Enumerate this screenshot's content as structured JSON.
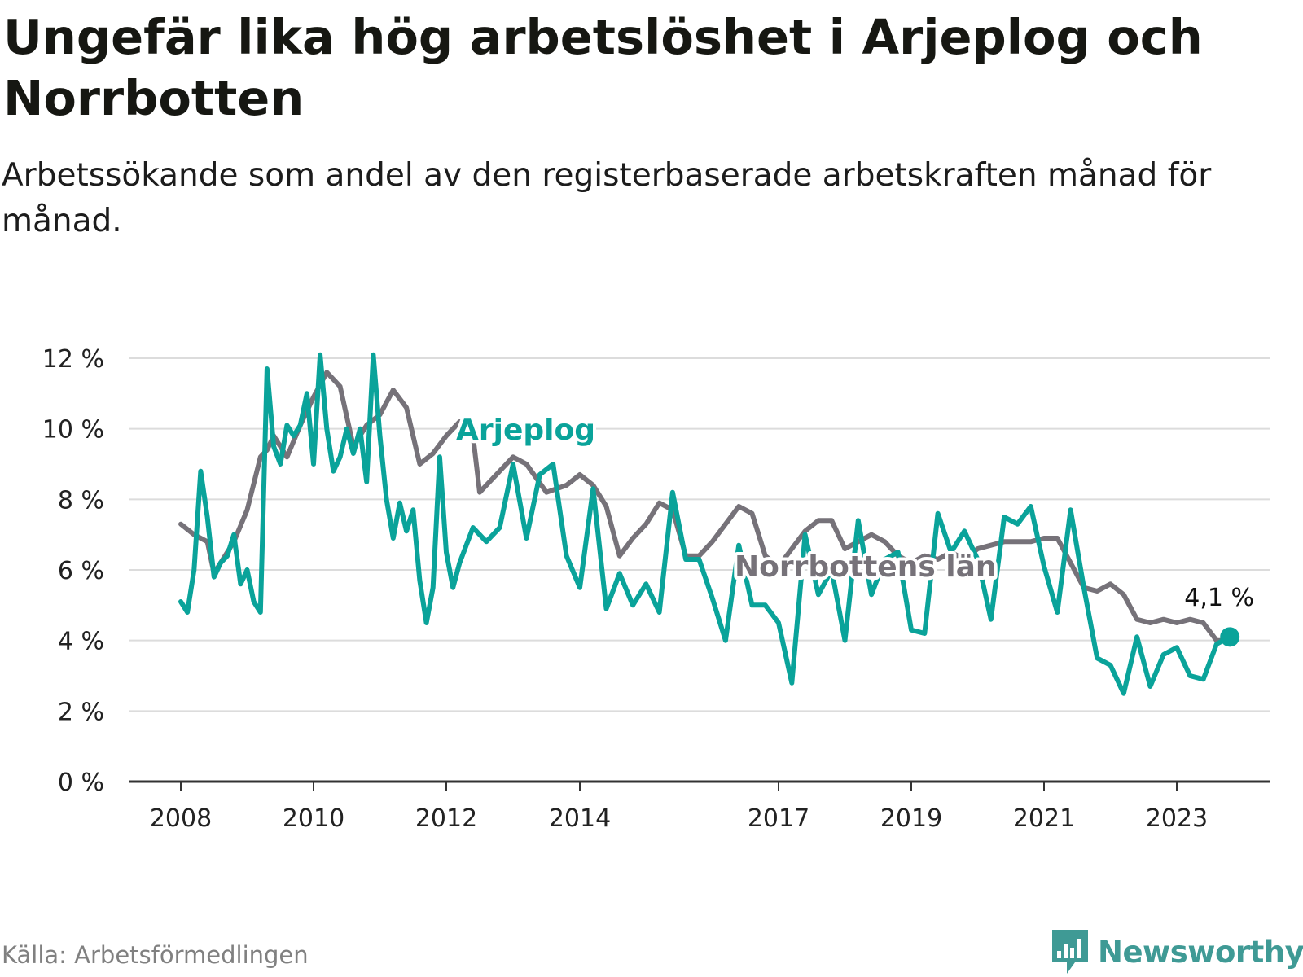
{
  "title": "Ungefär lika hög arbetslöshet i Arjeplog och Norrbotten",
  "subtitle": "Arbetssökande som andel av den registerbaserade arbetskraften månad för månad.",
  "source": "Källa: Arbetsförmedlingen",
  "brand": "Newsworthy",
  "colors": {
    "arjeplog": "#0aa39a",
    "norrbotten": "#767279",
    "grid": "#dcdcdc",
    "axis": "#333333",
    "brand": "#3f9a95"
  },
  "chart_data": {
    "type": "line",
    "title": "Ungefär lika hög arbetslöshet i Arjeplog och Norrbotten",
    "xlabel": "",
    "ylabel": "",
    "ylim": [
      0,
      12
    ],
    "yticks": [
      0,
      2,
      4,
      6,
      8,
      10,
      12
    ],
    "ytick_labels": [
      "0 %",
      "2 %",
      "4 %",
      "6 %",
      "8 %",
      "10 %",
      "12 %"
    ],
    "xlim": [
      2008,
      2024.5
    ],
    "xticks": [
      2008,
      2010,
      2012,
      2014,
      2017,
      2019,
      2021,
      2023
    ],
    "xtick_labels": [
      "2008",
      "2010",
      "2012",
      "2014",
      "2017",
      "2019",
      "2021",
      "2023"
    ],
    "grid": true,
    "end_label": "4,1 %",
    "series": [
      {
        "name": "Norrbottens län",
        "label": "Norrbottens län",
        "color": "#767279",
        "x": [
          2008.0,
          2008.2,
          2008.4,
          2008.5,
          2008.6,
          2008.8,
          2009.0,
          2009.2,
          2009.3,
          2009.4,
          2009.6,
          2009.8,
          2010.0,
          2010.2,
          2010.4,
          2010.6,
          2010.8,
          2011.0,
          2011.2,
          2011.4,
          2011.6,
          2011.8,
          2012.0,
          2012.2,
          2012.4,
          2012.5,
          2012.7,
          2013.0,
          2013.2,
          2013.5,
          2013.8,
          2014.0,
          2014.2,
          2014.4,
          2014.6,
          2014.8,
          2015.0,
          2015.2,
          2015.4,
          2015.6,
          2015.8,
          2016.0,
          2016.2,
          2016.4,
          2016.6,
          2016.8,
          2017.0,
          2017.2,
          2017.4,
          2017.6,
          2017.8,
          2018.0,
          2018.2,
          2018.4,
          2018.6,
          2018.8,
          2019.0,
          2019.2,
          2019.4,
          2019.6,
          2019.8,
          2020.0,
          2020.2,
          2020.4,
          2020.6,
          2020.8,
          2021.0,
          2021.2,
          2021.4,
          2021.6,
          2021.8,
          2022.0,
          2022.2,
          2022.4,
          2022.6,
          2022.8,
          2023.0,
          2023.2,
          2023.4,
          2023.6,
          2023.8
        ],
        "values": [
          7.3,
          7.0,
          6.8,
          5.9,
          6.2,
          6.8,
          7.7,
          9.2,
          9.4,
          9.8,
          9.2,
          10.1,
          10.9,
          11.6,
          11.2,
          9.5,
          10.1,
          10.4,
          11.1,
          10.6,
          9.0,
          9.3,
          9.8,
          10.2,
          9.8,
          8.2,
          8.6,
          9.2,
          9.0,
          8.2,
          8.4,
          8.7,
          8.4,
          7.8,
          6.4,
          6.9,
          7.3,
          7.9,
          7.7,
          6.4,
          6.4,
          6.8,
          7.3,
          7.8,
          7.6,
          6.4,
          6.1,
          6.6,
          7.1,
          7.4,
          7.4,
          6.6,
          6.8,
          7.0,
          6.8,
          6.4,
          6.2,
          6.4,
          6.3,
          6.5,
          6.3,
          6.6,
          6.7,
          6.8,
          6.8,
          6.8,
          6.9,
          6.9,
          6.2,
          5.5,
          5.4,
          5.6,
          5.3,
          4.6,
          4.5,
          4.6,
          4.5,
          4.6,
          4.5,
          4.0,
          4.0
        ]
      },
      {
        "name": "Arjeplog",
        "label": "Arjeplog",
        "color": "#0aa39a",
        "x": [
          2008.0,
          2008.1,
          2008.2,
          2008.3,
          2008.4,
          2008.5,
          2008.6,
          2008.7,
          2008.8,
          2008.9,
          2009.0,
          2009.1,
          2009.2,
          2009.3,
          2009.4,
          2009.5,
          2009.6,
          2009.7,
          2009.8,
          2009.9,
          2010.0,
          2010.1,
          2010.2,
          2010.3,
          2010.4,
          2010.5,
          2010.6,
          2010.7,
          2010.8,
          2010.9,
          2011.0,
          2011.1,
          2011.2,
          2011.3,
          2011.4,
          2011.5,
          2011.6,
          2011.7,
          2011.8,
          2011.9,
          2012.0,
          2012.1,
          2012.2,
          2012.3,
          2012.4,
          2012.5,
          2012.6,
          2012.8,
          2013.0,
          2013.2,
          2013.4,
          2013.6,
          2013.8,
          2014.0,
          2014.2,
          2014.4,
          2014.6,
          2014.8,
          2015.0,
          2015.2,
          2015.4,
          2015.6,
          2015.8,
          2016.0,
          2016.2,
          2016.4,
          2016.6,
          2016.8,
          2017.0,
          2017.2,
          2017.4,
          2017.6,
          2017.8,
          2018.0,
          2018.2,
          2018.4,
          2018.6,
          2018.8,
          2019.0,
          2019.2,
          2019.4,
          2019.6,
          2019.8,
          2020.0,
          2020.2,
          2020.4,
          2020.6,
          2020.8,
          2021.0,
          2021.2,
          2021.4,
          2021.6,
          2021.8,
          2022.0,
          2022.2,
          2022.4,
          2022.6,
          2022.8,
          2023.0,
          2023.2,
          2023.4,
          2023.6,
          2023.8
        ],
        "values": [
          5.1,
          4.8,
          6.0,
          8.8,
          7.5,
          5.8,
          6.2,
          6.4,
          7.0,
          5.6,
          6.0,
          5.1,
          4.8,
          11.7,
          9.5,
          9.0,
          10.1,
          9.8,
          10.1,
          11.0,
          9.0,
          12.1,
          10.0,
          8.8,
          9.2,
          10.0,
          9.3,
          10.0,
          8.5,
          12.1,
          9.8,
          8.0,
          6.9,
          7.9,
          7.1,
          7.7,
          5.7,
          4.5,
          5.5,
          9.2,
          6.5,
          5.5,
          6.2,
          6.7,
          7.2,
          7.0,
          6.8,
          7.2,
          9.0,
          6.9,
          8.7,
          9.0,
          6.4,
          5.5,
          8.3,
          4.9,
          5.9,
          5.0,
          5.6,
          4.8,
          8.2,
          6.3,
          6.3,
          5.2,
          4.0,
          6.7,
          5.0,
          5.0,
          4.5,
          2.8,
          7.0,
          5.3,
          6.0,
          4.0,
          7.4,
          5.3,
          6.3,
          6.5,
          4.3,
          4.2,
          7.6,
          6.5,
          7.1,
          6.3,
          4.6,
          7.5,
          7.3,
          7.8,
          6.1,
          4.8,
          7.7,
          5.5,
          3.5,
          3.3,
          2.5,
          4.1,
          2.7,
          3.6,
          3.8,
          3.0,
          2.9,
          3.9,
          4.1
        ]
      }
    ]
  }
}
